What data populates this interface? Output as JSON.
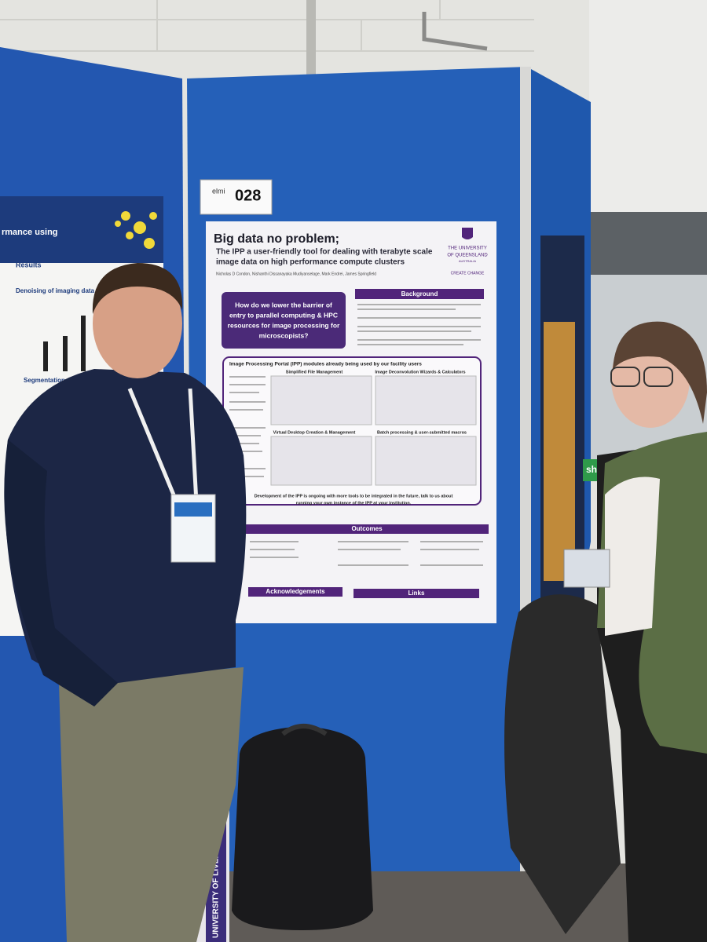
{
  "board_label": {
    "brand": "elmi",
    "number": "028"
  },
  "poster": {
    "title": "Big data no problem;",
    "subtitle_lines": [
      "The IPP a user-friendly tool for dealing with terabyte scale",
      "image data on high performance compute clusters"
    ],
    "institution_lines": [
      "THE UNIVERSITY",
      "OF QUEENSLAND"
    ],
    "country": "AUSTRALIA",
    "motto": "CREATE CHANGE",
    "authors": "Nicholas D Condon, Nishanthi Dissanayaka Mudiyanselage, Mark Endrei, James Springfield",
    "question_lines": [
      "How do we lower the barrier of",
      "entry to parallel computing & HPC",
      "resources for image processing for",
      "microscopists?"
    ],
    "background": "Background",
    "modules_heading": "Image Processing Portal (IPP) modules already being used by our facility users",
    "panels": [
      "Simplified File Management",
      "Image Deconvolution Wizards & Calculators",
      "Virtual Desktop Creation & Management",
      "Batch processing & user-submitted macros"
    ],
    "development_lines": [
      "Development of the IPP is ongoing with more tools to be integrated in the future, talk to us about",
      "running your own instance of the IPP at your institution."
    ],
    "outcomes": "Outcomes",
    "acknowledgements": "Acknowledgements",
    "links": "Links"
  },
  "left_poster": {
    "title_fragment": "rmance using",
    "results": "Results",
    "denoising": "Denoising of imaging data – N",
    "segmentation": "Segmentation of"
  },
  "sign": "sh bar to",
  "tube_label": "UNIVERSITY OF LIVERPOOL"
}
